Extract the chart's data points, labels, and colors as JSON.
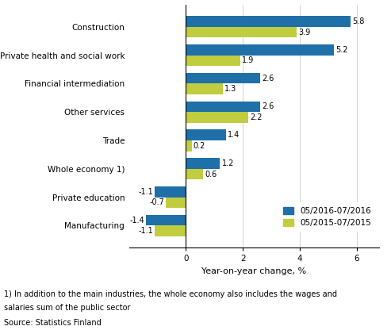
{
  "categories": [
    "Manufacturing",
    "Private education",
    "Whole economy 1)",
    "Trade",
    "Other services",
    "Financial intermediation",
    "Private health and social work",
    "Construction"
  ],
  "values_2016": [
    -1.4,
    -1.1,
    1.2,
    1.4,
    2.6,
    2.6,
    5.2,
    5.8
  ],
  "values_2015": [
    -1.1,
    -0.7,
    0.6,
    0.2,
    2.2,
    1.3,
    1.9,
    3.9
  ],
  "color_2016": "#1F6FA8",
  "color_2015": "#BFCD3E",
  "legend_2016": "05/2016-07/2016",
  "legend_2015": "05/2015-07/2015",
  "xlabel": "Year-on-year change, %",
  "xlim": [
    -2.0,
    6.8
  ],
  "xticks": [
    0,
    2,
    4,
    6
  ],
  "footnote1": "1) In addition to the main industries, the whole economy also includes the wages and",
  "footnote2": "salaries sum of the public sector",
  "source": "Source: Statistics Finland",
  "bar_height": 0.38,
  "label_fontsize": 7.0,
  "tick_fontsize": 7.5,
  "xlabel_fontsize": 8.0,
  "legend_fontsize": 7.5,
  "footnote_fontsize": 7.0
}
